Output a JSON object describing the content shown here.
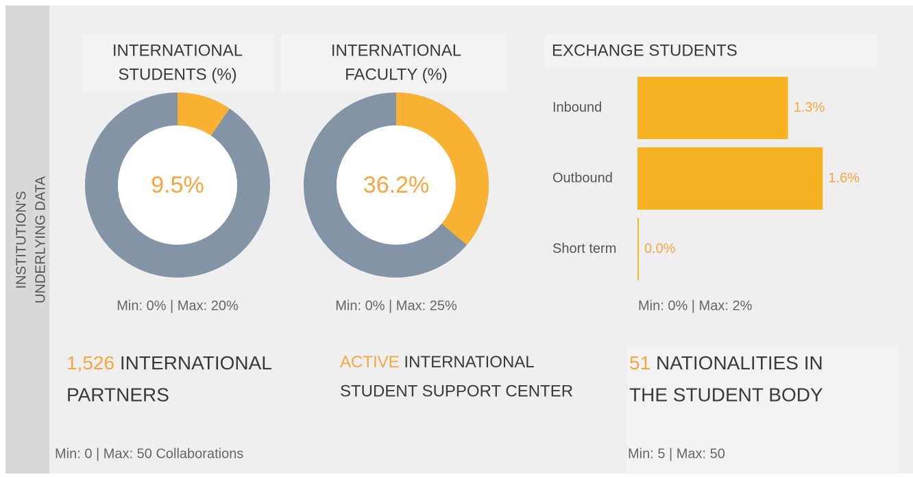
{
  "side_label": [
    "INSTITUTION'S",
    "UNDERLYING DATA"
  ],
  "chart_data": [
    {
      "type": "donut",
      "title": [
        "INTERNATIONAL",
        "STUDENTS (%)"
      ],
      "values": [
        9.5
      ],
      "value_labels": [
        "9.5%"
      ],
      "colors": [
        "#f9b233",
        "#8494a7"
      ],
      "note": "Min: 0% | Max: 20%"
    },
    {
      "type": "donut",
      "title": [
        "INTERNATIONAL",
        "FACULTY (%)"
      ],
      "values": [
        36.2
      ],
      "value_labels": [
        "36.2%"
      ],
      "colors": [
        "#f9b233",
        "#8494a7"
      ],
      "note": "Min: 0% | Max: 25%"
    },
    {
      "type": "hbar",
      "title": [
        "EXCHANGE STUDENTS"
      ],
      "categories": [
        "Inbound",
        "Outbound",
        "Short term"
      ],
      "values": [
        1.3,
        1.6,
        0.0
      ],
      "value_labels": [
        "1.3%",
        "1.6%",
        "0.0%"
      ],
      "color": "#f8b324",
      "xlim": [
        0,
        2
      ],
      "note": "Min: 0% | Max: 2%"
    }
  ],
  "stats": [
    {
      "highlight": "1,526",
      "lines": [
        "INTERNATIONAL",
        "PARTNERS"
      ],
      "note": "Min: 0 | Max: 50 Collaborations"
    },
    {
      "highlight": "ACTIVE",
      "lines": [
        "INTERNATIONAL",
        "STUDENT SUPPORT CENTER"
      ]
    },
    {
      "highlight": "51",
      "lines": [
        "NATIONALITIES IN",
        "THE STUDENT BODY"
      ],
      "note": "Min: 5 | Max: 50"
    }
  ]
}
